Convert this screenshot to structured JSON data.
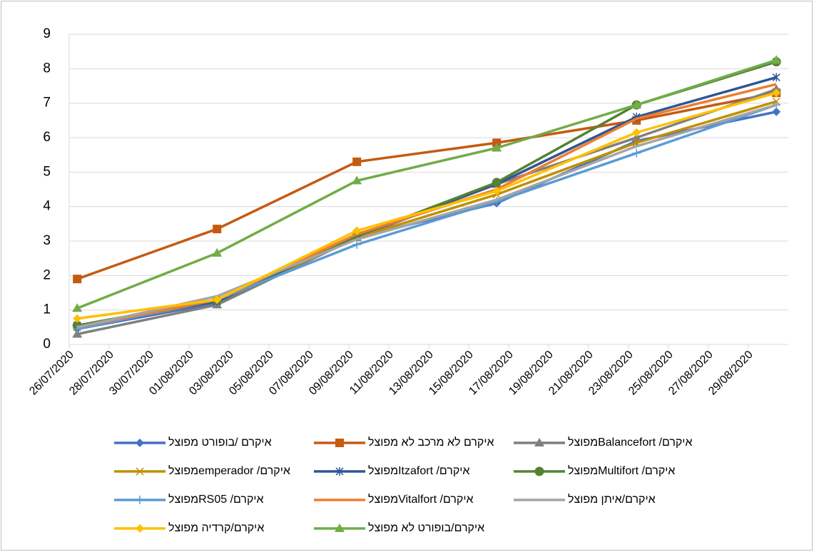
{
  "chart_data": {
    "type": "line",
    "x": [
      "26/07/2020",
      "02/08/2020",
      "09/08/2020",
      "16/08/2020",
      "23/08/2020",
      "30/08/2020"
    ],
    "xlim": [
      "26/07/2020",
      "31/08/2020"
    ],
    "xticks": [
      "26/07/2020",
      "28/07/2020",
      "30/07/2020",
      "01/08/2020",
      "03/08/2020",
      "05/08/2020",
      "07/08/2020",
      "09/08/2020",
      "11/08/2020",
      "13/08/2020",
      "15/08/2020",
      "17/08/2020",
      "19/08/2020",
      "21/08/2020",
      "23/08/2020",
      "25/08/2020",
      "27/08/2020",
      "29/08/2020"
    ],
    "ylim": [
      0,
      9
    ],
    "yticks": [
      0,
      1,
      2,
      3,
      4,
      5,
      6,
      7,
      8,
      9
    ],
    "grid": true,
    "series": [
      {
        "name": "איקרם /בופורט מפוצל",
        "color": "#4472c4",
        "marker": "diamond",
        "values": [
          0.45,
          1.2,
          3.1,
          4.1,
          5.9,
          6.75
        ]
      },
      {
        "name": "איקרם לא מרכב לא מפוצל",
        "color": "#c55a11",
        "marker": "square",
        "values": [
          1.9,
          3.35,
          5.3,
          5.85,
          6.5,
          7.3
        ]
      },
      {
        "name": "איקרם/ Balancefortמפוצל",
        "color": "#7f7f7f",
        "marker": "triangle",
        "values": [
          0.3,
          1.15,
          3.1,
          4.65,
          6.0,
          7.4
        ]
      },
      {
        "name": "איקרם/ emperadorמפוצל",
        "color": "#bf9000",
        "marker": "x",
        "values": [
          0.5,
          1.25,
          3.1,
          4.35,
          5.85,
          7.05
        ]
      },
      {
        "name": "איקרם/ Itzafortמפוצל",
        "color": "#2f5597",
        "marker": "star",
        "values": [
          0.55,
          1.25,
          3.15,
          4.65,
          6.6,
          7.75
        ]
      },
      {
        "name": "איקרם/ Multifortמפוצל",
        "color": "#548235",
        "marker": "circle",
        "values": [
          0.55,
          1.3,
          3.15,
          4.7,
          6.95,
          8.2
        ]
      },
      {
        "name": "איקרם/ RS05מפוצל",
        "color": "#5b9bd5",
        "marker": "plus",
        "values": [
          0.45,
          1.3,
          2.9,
          4.15,
          5.55,
          6.95
        ]
      },
      {
        "name": "איקרם/ Vitalfortמפוצל",
        "color": "#ed7d31",
        "marker": "dash",
        "values": [
          0.5,
          1.3,
          3.2,
          4.5,
          6.55,
          7.55
        ]
      },
      {
        "name": "איקרם/איתן מפוצל",
        "color": "#a5a5a5",
        "marker": "dash",
        "values": [
          0.5,
          1.4,
          3.05,
          4.2,
          5.75,
          6.95
        ]
      },
      {
        "name": "איקרם/קרדיה מפוצל",
        "color": "#ffc000",
        "marker": "diamond",
        "values": [
          0.75,
          1.3,
          3.3,
          4.45,
          6.15,
          7.3
        ]
      },
      {
        "name": "איקרם/בופורט לא מפוצל",
        "color": "#70ad47",
        "marker": "triangle",
        "values": [
          1.05,
          2.65,
          4.75,
          5.7,
          6.95,
          8.25
        ]
      }
    ]
  }
}
